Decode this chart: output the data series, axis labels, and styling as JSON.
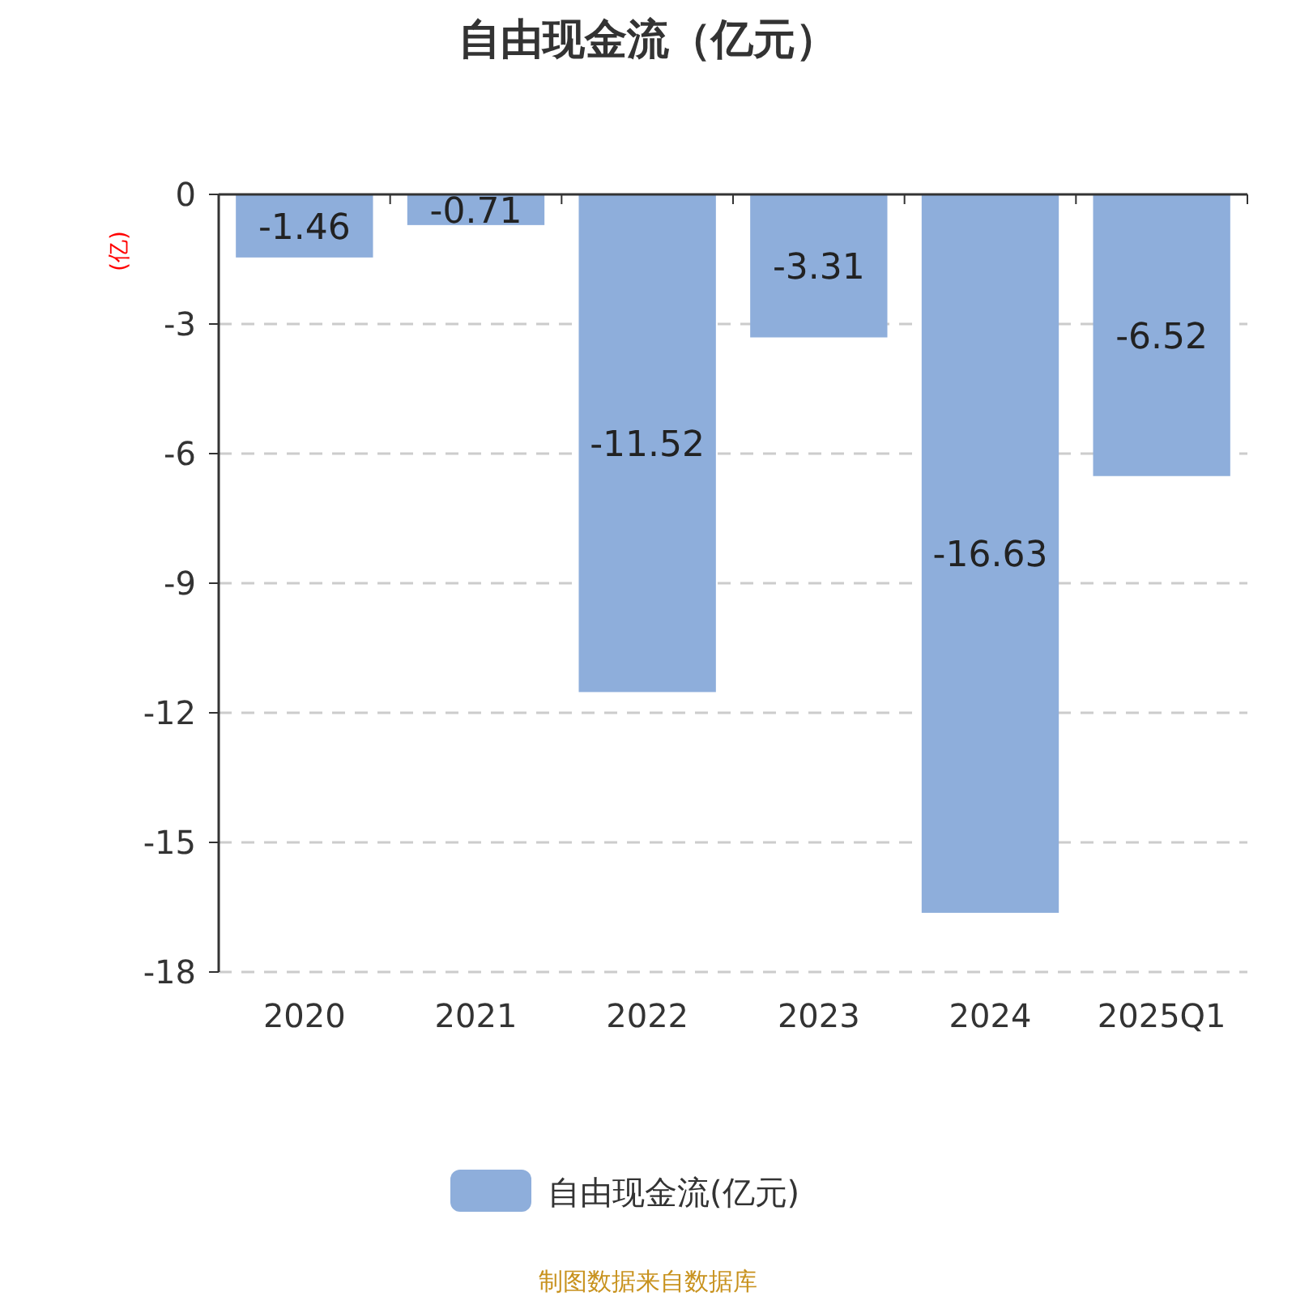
{
  "chart_data": {
    "type": "bar",
    "title": "自由现金流（亿元）",
    "ylabel": "(亿)",
    "categories": [
      "2020",
      "2021",
      "2022",
      "2023",
      "2024",
      "2025Q1"
    ],
    "series": [
      {
        "name": "自由现金流(亿元)",
        "color": "#8eaedb",
        "values": [
          -1.46,
          -0.71,
          -11.52,
          -3.31,
          -16.63,
          -6.52
        ]
      }
    ],
    "ylim": [
      -18,
      0
    ],
    "yticks": [
      0,
      -3,
      -6,
      -9,
      -12,
      -15,
      -18
    ],
    "grid": "y",
    "legend": "bottom",
    "data_labels": true,
    "annotations": [
      "制图数据来自数据库"
    ]
  }
}
